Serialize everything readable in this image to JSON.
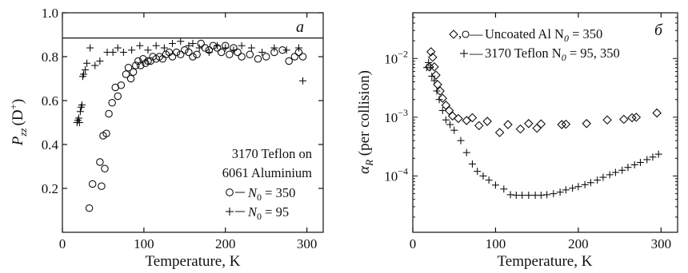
{
  "chart_data": [
    {
      "type": "scatter",
      "panel_letter": "a",
      "xlabel": "Temperature, K",
      "ylabel_main": "P",
      "ylabel_sub": "zz",
      "ylabel_paren": "(D",
      "ylabel_sup": "+",
      "ylabel_close": ")",
      "xlim": [
        0,
        320
      ],
      "ylim": [
        0.0,
        1.0
      ],
      "xticks": [
        0,
        100,
        200,
        300
      ],
      "yticks": [
        0.2,
        0.4,
        0.6,
        0.8,
        1.0
      ],
      "ytick_labels": [
        "0.2",
        "0.4",
        "0.6",
        "0.8",
        "1.0"
      ],
      "hline": 0.885,
      "legend_title_lines": [
        "3170 Teflon on",
        "6061 Aluminium"
      ],
      "series": [
        {
          "name": "N0 = 350",
          "legend_label": "N",
          "legend_sub": "0",
          "legend_eq": " = 350",
          "marker": "circle",
          "x": [
            33,
            37,
            46,
            48,
            50,
            52,
            54,
            57,
            61,
            65,
            68,
            72,
            78,
            81,
            84,
            87,
            90,
            93,
            96,
            99,
            102,
            105,
            108,
            111,
            115,
            119,
            123,
            127,
            131,
            135,
            140,
            145,
            150,
            155,
            160,
            165,
            170,
            175,
            180,
            185,
            190,
            195,
            200,
            205,
            210,
            215,
            220,
            230,
            240,
            250,
            260,
            270,
            278,
            285,
            290,
            295
          ],
          "y": [
            0.11,
            0.22,
            0.32,
            0.21,
            0.44,
            0.29,
            0.45,
            0.54,
            0.59,
            0.66,
            0.62,
            0.67,
            0.72,
            0.75,
            0.7,
            0.73,
            0.76,
            0.78,
            0.76,
            0.79,
            0.77,
            0.78,
            0.78,
            0.8,
            0.79,
            0.8,
            0.79,
            0.81,
            0.82,
            0.8,
            0.82,
            0.81,
            0.83,
            0.82,
            0.8,
            0.81,
            0.86,
            0.84,
            0.83,
            0.85,
            0.84,
            0.82,
            0.85,
            0.81,
            0.84,
            0.82,
            0.8,
            0.81,
            0.79,
            0.8,
            0.82,
            0.83,
            0.78,
            0.8,
            0.82,
            0.8
          ]
        },
        {
          "name": "N0 = 95",
          "legend_label": "N",
          "legend_sub": "0",
          "legend_eq": " = 95",
          "marker": "plus",
          "x": [
            18,
            19,
            20,
            21,
            22,
            23,
            24,
            25,
            26,
            28,
            30,
            34,
            40,
            46,
            55,
            62,
            68,
            75,
            85,
            95,
            105,
            115,
            125,
            135,
            145,
            155,
            160,
            168,
            180,
            190,
            200,
            210,
            220,
            232,
            245,
            260,
            275,
            290,
            295
          ],
          "y": [
            0.5,
            0.51,
            0.52,
            0.5,
            0.55,
            0.57,
            0.58,
            0.71,
            0.72,
            0.74,
            0.77,
            0.84,
            0.76,
            0.78,
            0.82,
            0.82,
            0.84,
            0.82,
            0.83,
            0.85,
            0.83,
            0.85,
            0.84,
            0.86,
            0.87,
            0.85,
            0.86,
            0.84,
            0.82,
            0.85,
            0.84,
            0.83,
            0.85,
            0.84,
            0.82,
            0.84,
            0.83,
            0.84,
            0.69
          ]
        }
      ]
    },
    {
      "type": "scatter",
      "panel_letter": "б",
      "xlabel": "Temperature, K",
      "ylabel_main": "α",
      "ylabel_sub": "R",
      "ylabel_rest": " (per collision)",
      "yscale": "log",
      "xlim": [
        0,
        320
      ],
      "ylim": [
        1.1e-05,
        0.06
      ],
      "xticks": [
        0,
        100,
        200,
        300
      ],
      "yticks": [
        0.0001,
        0.001,
        0.01
      ],
      "ytick_mantissa": "10",
      "ytick_exponents": [
        "−4",
        "−3",
        "−2"
      ],
      "series": [
        {
          "name": "Uncoated Al N0 = 350",
          "legend_label": "Uncoated Al N",
          "legend_sub": "0",
          "legend_eq": " = 350",
          "legend_prefix": ",",
          "legend_dash": "—",
          "marker": "diamond",
          "x": [
            20,
            22,
            24,
            26,
            28,
            30,
            33,
            36,
            40,
            44,
            48,
            55,
            65,
            72,
            80,
            90,
            105,
            115,
            130,
            140,
            150,
            155,
            180,
            185,
            210,
            235,
            255,
            265,
            270,
            295
          ],
          "y": [
            0.0072,
            0.013,
            0.0105,
            0.0072,
            0.0052,
            0.0036,
            0.0028,
            0.0021,
            0.0016,
            0.0013,
            0.00105,
            0.00095,
            0.00088,
            0.00098,
            0.00072,
            0.00085,
            0.00055,
            0.00075,
            0.00063,
            0.00078,
            0.00065,
            0.00077,
            0.00075,
            0.00076,
            0.00078,
            0.0009,
            0.00092,
            0.00098,
            0.001,
            0.00118
          ]
        },
        {
          "name": "3170 Teflon N0 = 95, 350",
          "legend_label": "3170 Teflon N",
          "legend_sub": "0",
          "legend_eq": " = 95, 350",
          "legend_dash": "—",
          "marker": "plus",
          "x": [
            17,
            19,
            21,
            23,
            26,
            29,
            32,
            36,
            40,
            45,
            50,
            58,
            65,
            72,
            78,
            85,
            92,
            100,
            110,
            118,
            125,
            132,
            140,
            148,
            155,
            162,
            170,
            178,
            185,
            193,
            200,
            208,
            215,
            223,
            230,
            238,
            245,
            253,
            260,
            268,
            275,
            283,
            290,
            297
          ],
          "y": [
            0.007,
            0.0085,
            0.007,
            0.005,
            0.0042,
            0.0028,
            0.002,
            0.0013,
            0.0009,
            0.00075,
            0.0006,
            0.0004,
            0.00025,
            0.00016,
            0.00012,
            0.0001,
            8.5e-05,
            7e-05,
            6e-05,
            4.8e-05,
            4.7e-05,
            4.7e-05,
            4.7e-05,
            4.7e-05,
            4.7e-05,
            4.8e-05,
            5e-05,
            5.3e-05,
            5.8e-05,
            6.2e-05,
            6.6e-05,
            7.1e-05,
            7.7e-05,
            8.5e-05,
            9.5e-05,
            0.000105,
            0.000115,
            0.000125,
            0.00014,
            0.000155,
            0.00017,
            0.00019,
            0.00021,
            0.000235
          ]
        }
      ]
    }
  ]
}
